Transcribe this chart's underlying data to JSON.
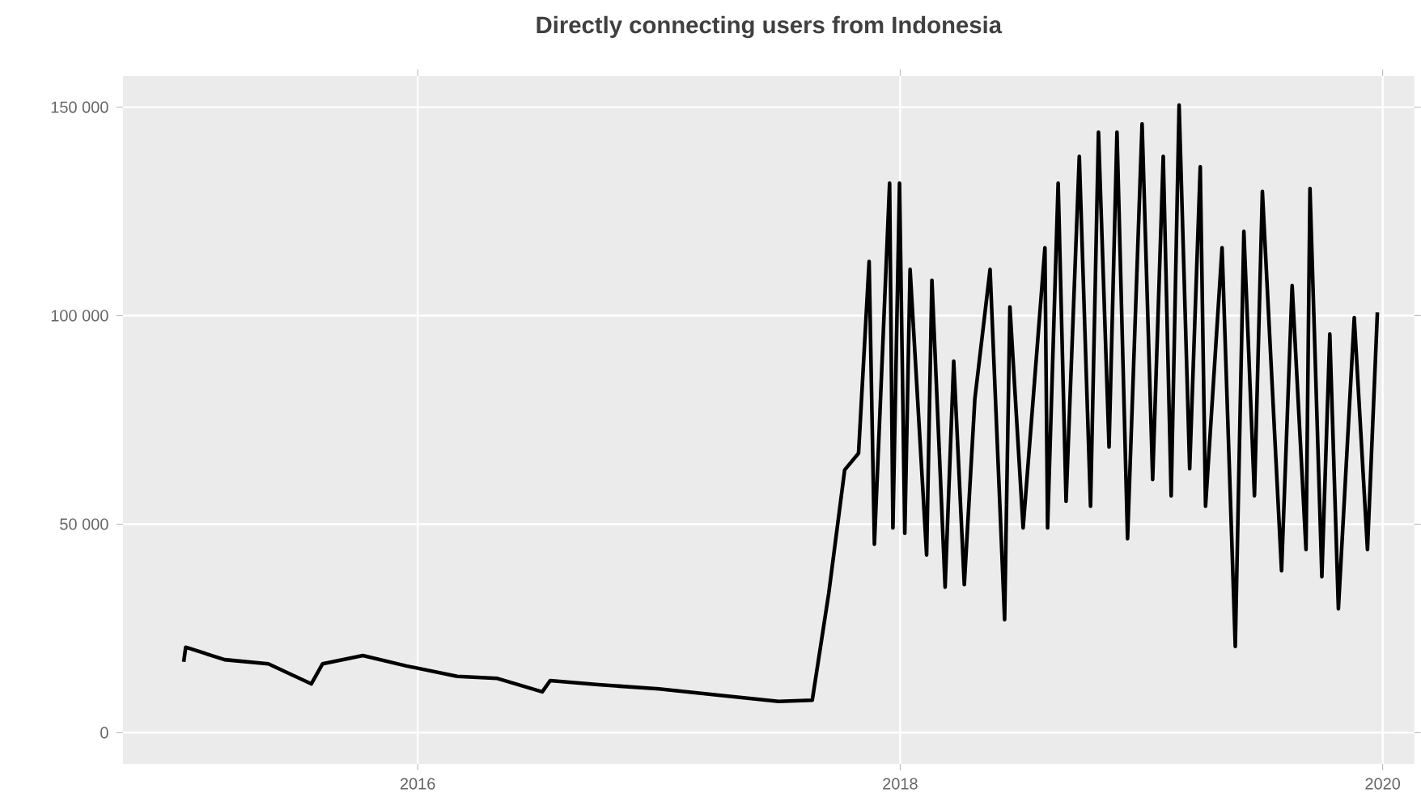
{
  "chart_data": {
    "type": "line",
    "title": "Directly connecting users from Indonesia",
    "color": "#000000",
    "grid": true,
    "xlim": [
      "2014-10-12",
      "2020-02-18"
    ],
    "ylim": [
      -7500,
      157500
    ],
    "xticks": [
      {
        "value": "2016",
        "label": "2016"
      },
      {
        "value": "2018",
        "label": "2018"
      },
      {
        "value": "2020",
        "label": "2020"
      }
    ],
    "yticks": [
      {
        "value": 0,
        "label": "0"
      },
      {
        "value": 50000,
        "label": "50 000"
      },
      {
        "value": 100000,
        "label": "100 000"
      },
      {
        "value": 150000,
        "label": "150 000"
      }
    ],
    "x": [
      "2015-01-12",
      "2015-01-15",
      "2015-03-15",
      "2015-05-20",
      "2015-07-24",
      "2015-08-10",
      "2015-10-10",
      "2015-12-15",
      "2016-03-01",
      "2016-05-01",
      "2016-07-08",
      "2016-07-20",
      "2016-10-01",
      "2017-01-01",
      "2017-04-01",
      "2017-07-01",
      "2017-08-21",
      "2017-09-15",
      "2017-10-09",
      "2017-10-30",
      "2017-11-15",
      "2017-11-23",
      "2017-12-16",
      "2017-12-21",
      "2017-12-31",
      "2018-01-08",
      "2018-01-16",
      "2018-02-10",
      "2018-02-18",
      "2018-03-10",
      "2018-03-23",
      "2018-04-08",
      "2018-04-24",
      "2018-05-17",
      "2018-06-08",
      "2018-06-16",
      "2018-07-06",
      "2018-08-08",
      "2018-08-12",
      "2018-08-28",
      "2018-09-09",
      "2018-09-29",
      "2018-10-16",
      "2018-10-28",
      "2018-11-13",
      "2018-11-25",
      "2018-12-11",
      "2019-01-02",
      "2019-01-18",
      "2019-02-03",
      "2019-02-15",
      "2019-02-27",
      "2019-03-15",
      "2019-03-31",
      "2019-04-08",
      "2019-05-03",
      "2019-05-23",
      "2019-06-05",
      "2019-06-21",
      "2019-07-03",
      "2019-08-01",
      "2019-08-17",
      "2019-09-07",
      "2019-09-13",
      "2019-10-01",
      "2019-10-13",
      "2019-10-26",
      "2019-11-19",
      "2019-12-09",
      "2019-12-24"
    ],
    "values": [
      17000,
      20500,
      17500,
      16500,
      11700,
      16500,
      18500,
      16000,
      13500,
      13000,
      9800,
      12500,
      11500,
      10500,
      9000,
      7500,
      7800,
      33500,
      63000,
      67000,
      113000,
      45200,
      131800,
      49100,
      131800,
      47800,
      111100,
      42600,
      108500,
      34900,
      89100,
      35500,
      80100,
      111100,
      27100,
      102100,
      49100,
      116300,
      49100,
      131800,
      55500,
      138200,
      54300,
      144000,
      68500,
      144000,
      46500,
      146000,
      60700,
      138200,
      56800,
      150500,
      63300,
      135700,
      54300,
      116300,
      20700,
      120200,
      56800,
      129800,
      38800,
      107200,
      43900,
      130500,
      37400,
      95600,
      29700,
      99500,
      43900,
      100800
    ]
  }
}
